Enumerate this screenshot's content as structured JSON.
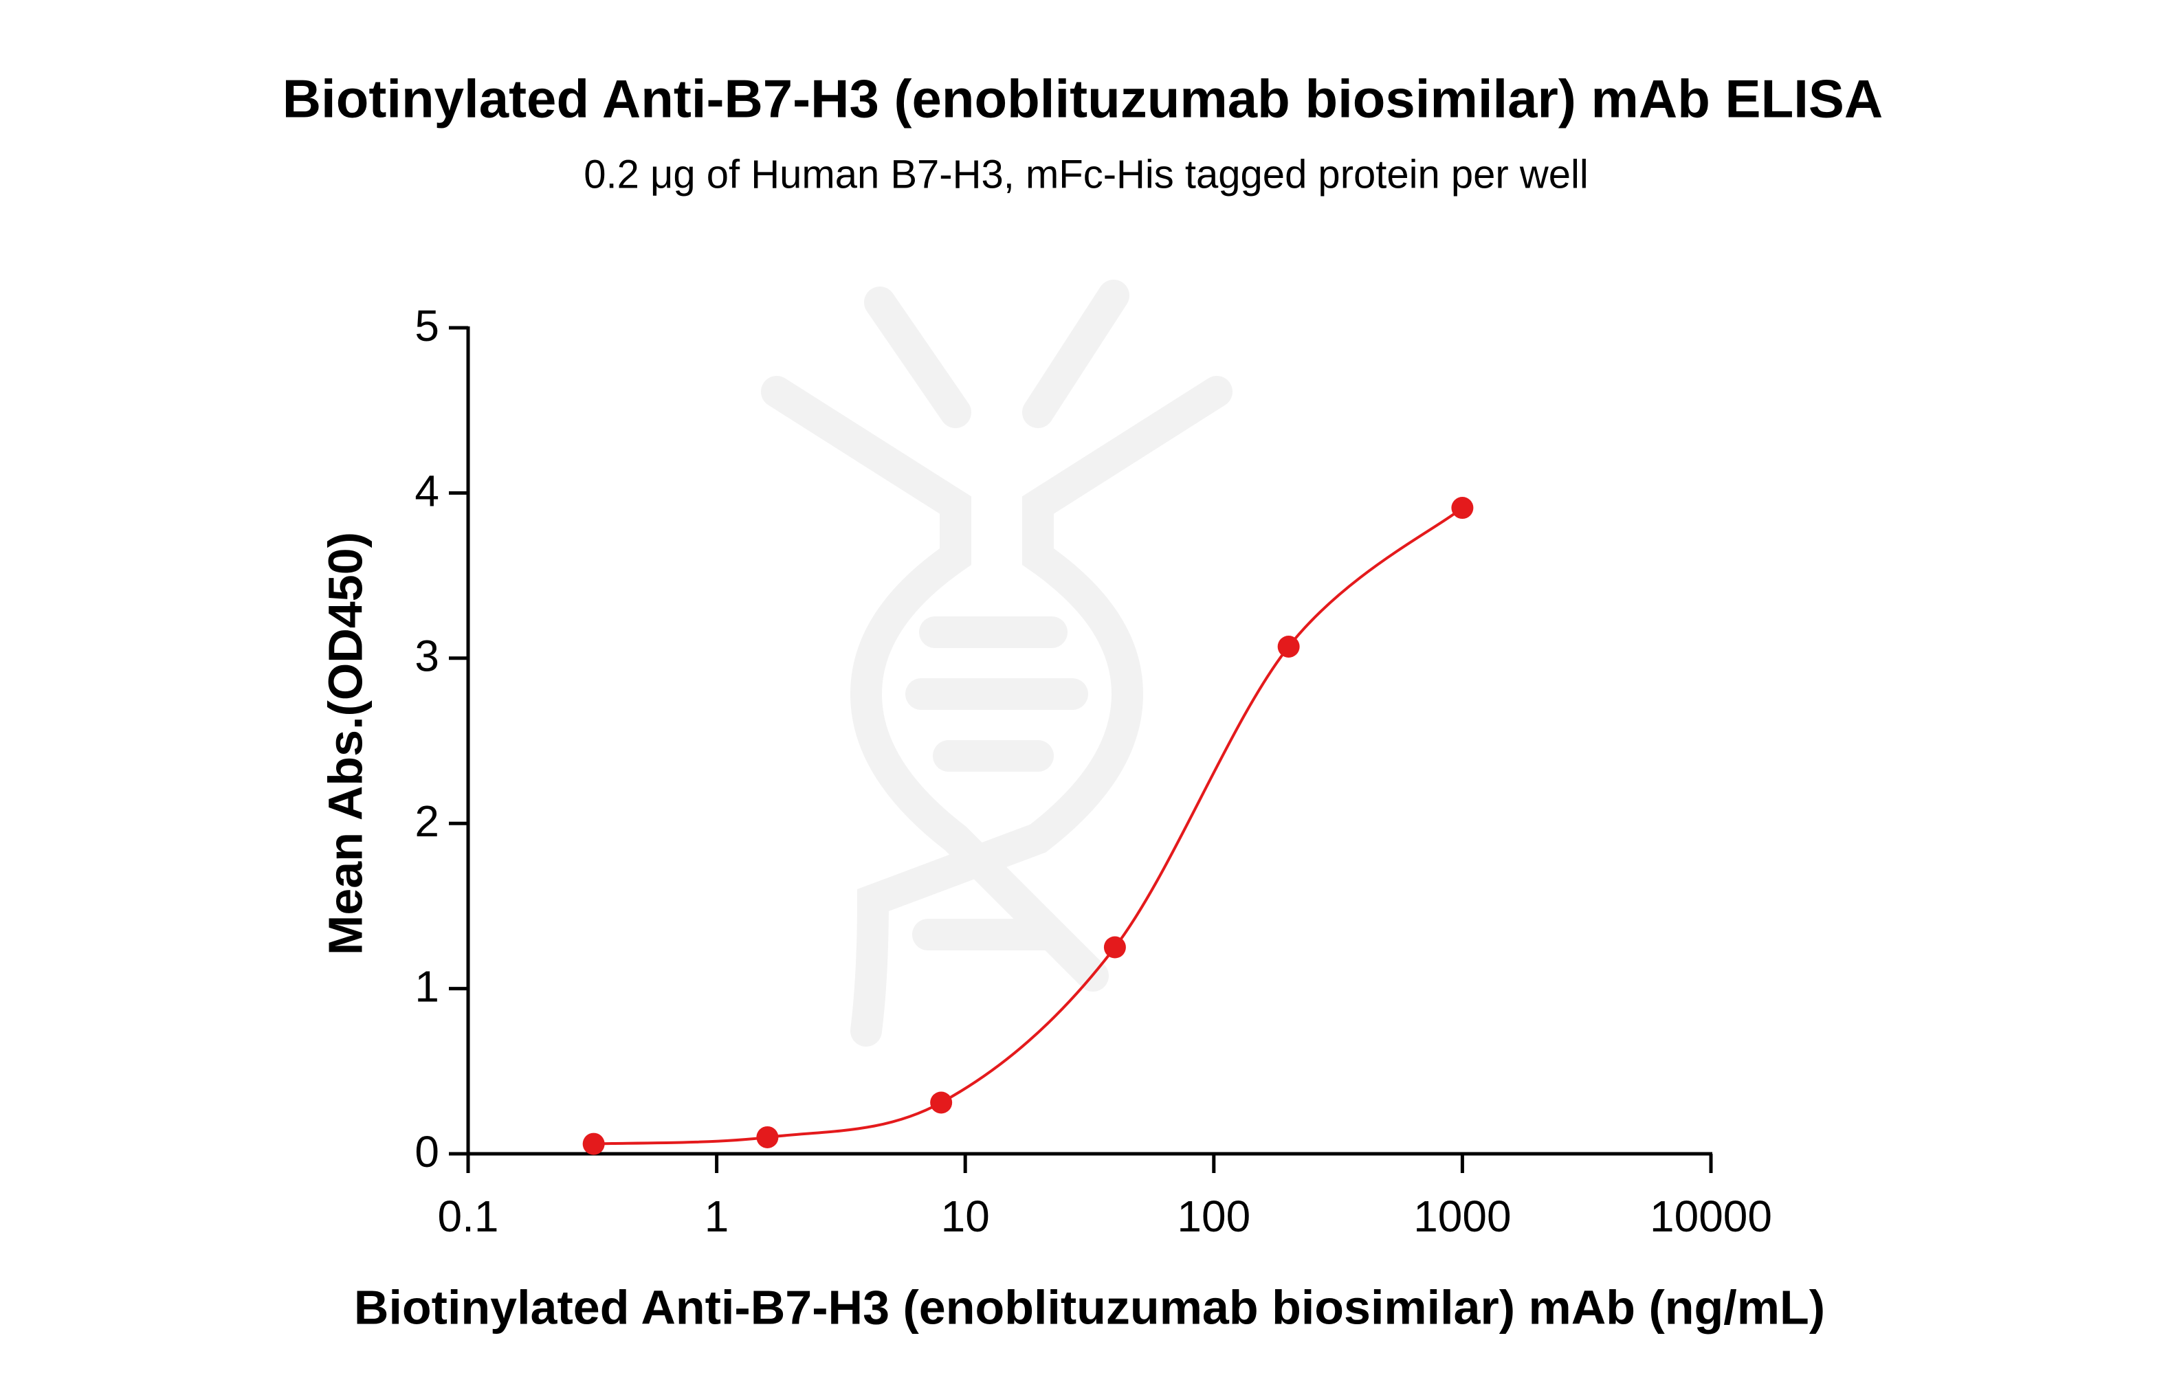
{
  "chart_data": {
    "type": "line",
    "title": "Biotinylated Anti-B7-H3 (enoblituzumab biosimilar) mAb ELISA",
    "subtitle": "0.2 μg of Human B7-H3, mFc-His tagged protein per well",
    "x_label": "Biotinylated Anti-B7-H3 (enoblituzumab biosimilar) mAb (ng/mL)",
    "y_label": "Mean Abs.(OD450)",
    "x": [
      0.32,
      1.6,
      8,
      40,
      200,
      1000
    ],
    "series": [
      {
        "color": "#e41a1c",
        "values": [
          0.06,
          0.1,
          0.31,
          1.25,
          3.07,
          3.91
        ]
      }
    ],
    "xscale": "log",
    "xlim": [
      0.1,
      10000
    ],
    "xticks": [
      0.1,
      1,
      10,
      100,
      1000,
      10000
    ],
    "ylim": [
      0,
      5
    ],
    "yticks": [
      0,
      1,
      2,
      3,
      4,
      5
    ]
  }
}
